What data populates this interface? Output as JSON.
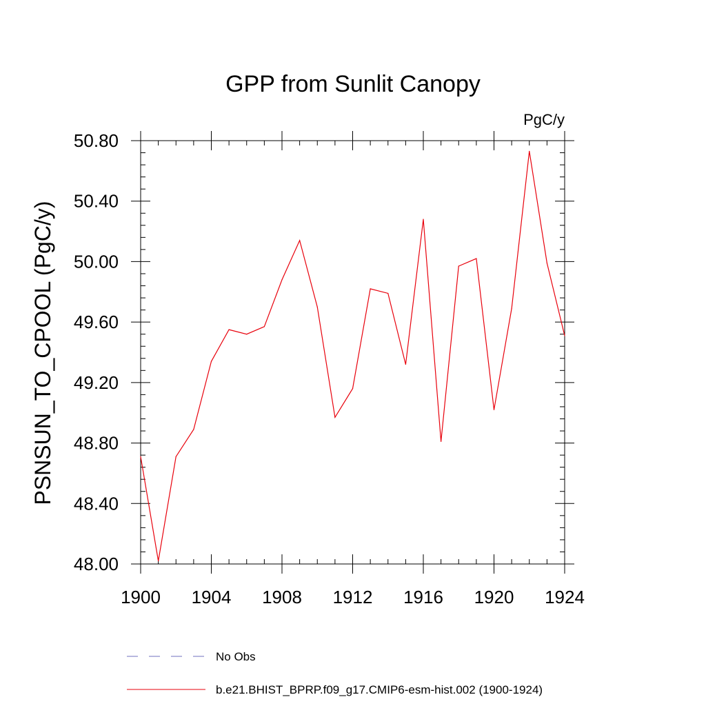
{
  "chart_data": {
    "type": "line",
    "title": "GPP from Sunlit Canopy",
    "units": "PgC/y",
    "xlabel": "",
    "ylabel": "PSNSUN_TO_CPOOL  (PgC/y)",
    "xlim": [
      1900,
      1924
    ],
    "ylim": [
      48.0,
      50.8
    ],
    "xticks": [
      1900,
      1904,
      1908,
      1912,
      1916,
      1920,
      1924
    ],
    "xtick_labels": [
      "1900",
      "1904",
      "1908",
      "1912",
      "1916",
      "1920",
      "1924"
    ],
    "yticks": [
      48.0,
      48.4,
      48.8,
      49.2,
      49.6,
      50.0,
      50.4,
      50.8
    ],
    "ytick_labels": [
      "48.00",
      "48.40",
      "48.80",
      "49.20",
      "49.60",
      "50.00",
      "50.40",
      "50.80"
    ],
    "grid": false,
    "legend_position": "bottom",
    "series": [
      {
        "name": "b.e21.BHIST_BPRP.f09_g17.CMIP6-esm-hist.002 (1900-1924)",
        "color": "#e8000b",
        "style": "solid",
        "x": [
          1900,
          1901,
          1902,
          1903,
          1904,
          1905,
          1906,
          1907,
          1908,
          1909,
          1910,
          1911,
          1912,
          1913,
          1914,
          1915,
          1916,
          1917,
          1918,
          1919,
          1920,
          1921,
          1922,
          1923,
          1924
        ],
        "values": [
          48.71,
          48.02,
          48.71,
          48.89,
          49.34,
          49.55,
          49.52,
          49.57,
          49.88,
          50.14,
          49.7,
          48.97,
          49.16,
          49.82,
          49.79,
          49.32,
          50.28,
          48.81,
          49.97,
          50.02,
          49.02,
          49.69,
          50.73,
          49.99,
          49.51
        ]
      }
    ],
    "legend": [
      {
        "label": "No Obs",
        "color": "#6f6fbf",
        "style": "dashed"
      },
      {
        "label": "b.e21.BHIST_BPRP.f09_g17.CMIP6-esm-hist.002 (1900-1924)",
        "color": "#e8000b",
        "style": "solid"
      }
    ]
  }
}
